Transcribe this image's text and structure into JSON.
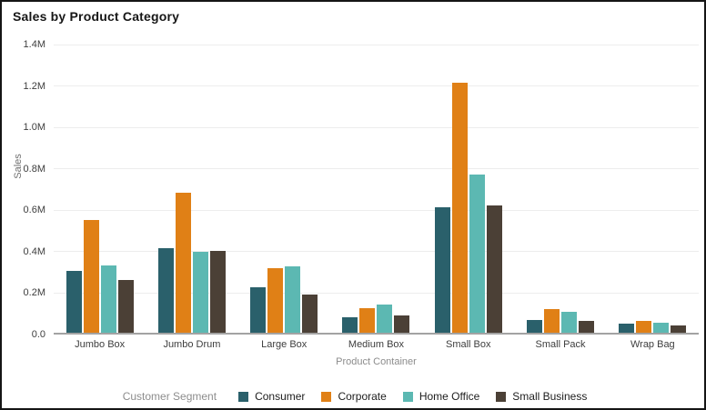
{
  "title": "Sales by Product Category",
  "chart_data": {
    "type": "bar",
    "title": "Sales by Product Category",
    "categories": [
      "Jumbo Box",
      "Jumbo Drum",
      "Large Box",
      "Medium Box",
      "Small Box",
      "Small Pack",
      "Wrap Bag"
    ],
    "series": [
      {
        "name": "Consumer",
        "color": "#2a606b",
        "values": [
          0.3,
          0.41,
          0.22,
          0.075,
          0.605,
          0.06,
          0.045
        ]
      },
      {
        "name": "Corporate",
        "color": "#e08016",
        "values": [
          0.545,
          0.675,
          0.31,
          0.12,
          1.205,
          0.115,
          0.055
        ]
      },
      {
        "name": "Home Office",
        "color": "#5cb8b2",
        "values": [
          0.325,
          0.39,
          0.32,
          0.135,
          0.765,
          0.1,
          0.05
        ]
      },
      {
        "name": "Small Business",
        "color": "#4b4036",
        "values": [
          0.255,
          0.395,
          0.185,
          0.085,
          0.615,
          0.055,
          0.035
        ]
      }
    ],
    "xlabel": "Product Container",
    "ylabel": "Sales",
    "ylim": [
      0,
      1.4
    ],
    "ytick_values": [
      1.4,
      1.2,
      1.0,
      0.8,
      0.6,
      0.4,
      0.2,
      0.0
    ],
    "ytick_labels": [
      "1.4M",
      "1.2M",
      "1.0M",
      "0.8M",
      "0.6M",
      "0.4M",
      "0.2M",
      "0.0"
    ],
    "legend_title": "Customer Segment",
    "legend_position": "bottom",
    "grid": true,
    "value_unit": "millions"
  }
}
